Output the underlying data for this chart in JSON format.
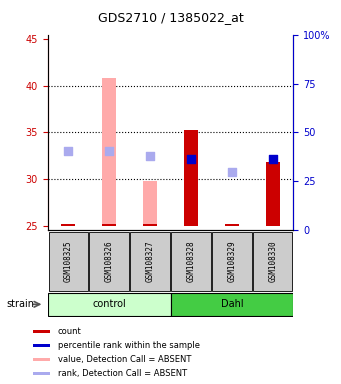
{
  "title": "GDS2710 / 1385022_at",
  "samples": [
    "GSM108325",
    "GSM108326",
    "GSM108327",
    "GSM108328",
    "GSM108329",
    "GSM108330"
  ],
  "groups": [
    "control",
    "control",
    "control",
    "Dahl",
    "Dahl",
    "Dahl"
  ],
  "ylim_left": [
    24.5,
    45.5
  ],
  "ylim_right": [
    0,
    100
  ],
  "yticks_left": [
    25,
    30,
    35,
    40,
    45
  ],
  "yticks_right": [
    0,
    25,
    50,
    75,
    100
  ],
  "ytick_labels_right": [
    "0",
    "25",
    "50",
    "75",
    "100%"
  ],
  "bar_bottom": 25,
  "red_bars": {
    "GSM108325": 25.2,
    "GSM108326": 25.0,
    "GSM108327": 25.0,
    "GSM108328": 35.3,
    "GSM108329": 25.0,
    "GSM108330": 31.8
  },
  "pink_bars": {
    "GSM108325": null,
    "GSM108326": 40.8,
    "GSM108327": 29.8,
    "GSM108328": null,
    "GSM108329": 25.2,
    "GSM108330": null
  },
  "blue_dots": {
    "GSM108325": null,
    "GSM108326": null,
    "GSM108327": null,
    "GSM108328": 32.2,
    "GSM108329": null,
    "GSM108330": 32.2
  },
  "light_blue_dots": {
    "GSM108325": 33.0,
    "GSM108326": 33.0,
    "GSM108327": 32.5,
    "GSM108328": null,
    "GSM108329": 30.8,
    "GSM108330": null
  },
  "red_bar_color": "#cc0000",
  "pink_bar_color": "#ffaaaa",
  "blue_dot_color": "#0000cc",
  "light_blue_dot_color": "#aaaaee",
  "control_group_color": "#ccffcc",
  "dahl_group_color": "#44cc44",
  "sample_box_color": "#cccccc",
  "left_axis_color": "#cc0000",
  "right_axis_color": "#0000cc",
  "bar_width": 0.35,
  "dot_size": 40,
  "grid_yticks": [
    30,
    35,
    40
  ],
  "legend_items": [
    [
      "#cc0000",
      "count"
    ],
    [
      "#0000cc",
      "percentile rank within the sample"
    ],
    [
      "#ffaaaa",
      "value, Detection Call = ABSENT"
    ],
    [
      "#aaaaee",
      "rank, Detection Call = ABSENT"
    ]
  ]
}
